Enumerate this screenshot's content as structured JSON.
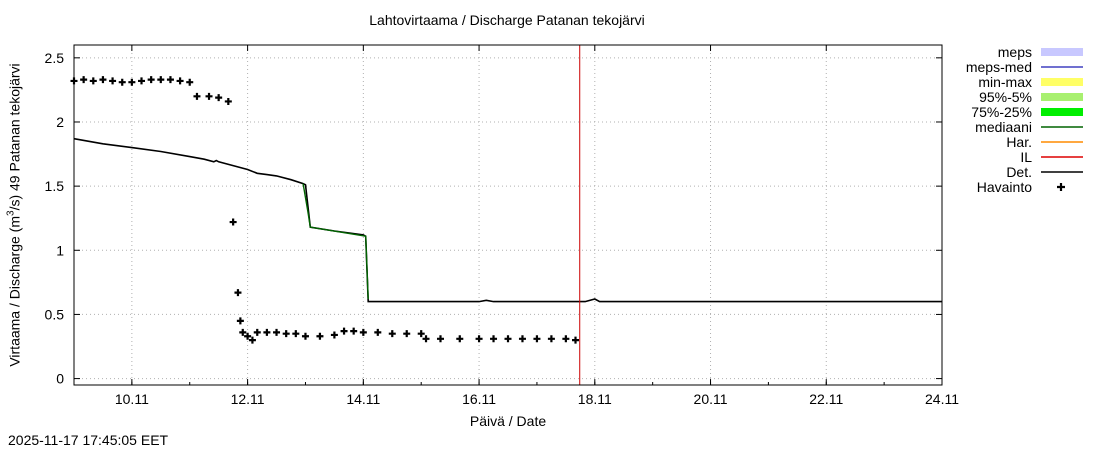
{
  "title": "Lahtovirtaama / Discharge  Patanan tekojärvi",
  "ylabel_main": "Virtaama / Discharge (m",
  "ylabel_sup": "3",
  "ylabel_tail": "/s)  49 Patanan tekojärvi",
  "xlabel": "Päivä / Date",
  "timestamp": "2025-11-17 17:45:05 EET",
  "chart_data": {
    "type": "line",
    "x_start": "2025-11-09",
    "x_ticks": [
      "10.11",
      "12.11",
      "14.11",
      "16.11",
      "18.11",
      "20.11",
      "22.11",
      "24.11"
    ],
    "xlim": [
      "2025-11-09",
      "2025-11-24"
    ],
    "ylim": [
      -0.05,
      2.6
    ],
    "y_ticks": [
      "0",
      "0.5",
      "1",
      "1.5",
      "2",
      "2.5"
    ],
    "y_tick_values": [
      0,
      0.5,
      1,
      1.5,
      2,
      2.5
    ],
    "grid": true,
    "vline": {
      "x": "2025-11-17 17:45",
      "color": "#cc0000"
    },
    "legend": [
      {
        "label": "meps",
        "style": "band",
        "color": "#c8c8ff"
      },
      {
        "label": "meps-med",
        "style": "line",
        "color": "#4040c0"
      },
      {
        "label": "min-max",
        "style": "band",
        "color": "#ffff66"
      },
      {
        "label": "95%-5%",
        "style": "band",
        "color": "#a8f070"
      },
      {
        "label": "75%-25%",
        "style": "band",
        "color": "#00ee00"
      },
      {
        "label": "mediaani",
        "style": "line",
        "color": "#006400"
      },
      {
        "label": "Har.",
        "style": "line",
        "color": "#ff8c00"
      },
      {
        "label": "IL",
        "style": "line",
        "color": "#dd0000"
      },
      {
        "label": "Det.",
        "style": "line",
        "color": "#000000"
      },
      {
        "label": "Havainto",
        "style": "point",
        "color": "#000000"
      }
    ],
    "series": [
      {
        "name": "Det.",
        "color": "#000000",
        "points": [
          [
            "2025-11-09 00:00",
            1.87
          ],
          [
            "2025-11-09 12:00",
            1.83
          ],
          [
            "2025-11-10 00:00",
            1.8
          ],
          [
            "2025-11-10 12:00",
            1.77
          ],
          [
            "2025-11-11 00:00",
            1.73
          ],
          [
            "2025-11-11 06:00",
            1.71
          ],
          [
            "2025-11-11 10:00",
            1.69
          ],
          [
            "2025-11-11 11:00",
            1.7
          ],
          [
            "2025-11-11 12:00",
            1.69
          ],
          [
            "2025-11-12 00:00",
            1.63
          ],
          [
            "2025-11-12 04:00",
            1.6
          ],
          [
            "2025-11-12 08:00",
            1.59
          ],
          [
            "2025-11-12 12:00",
            1.58
          ],
          [
            "2025-11-12 18:00",
            1.55
          ],
          [
            "2025-11-12 23:00",
            1.52
          ],
          [
            "2025-11-13 00:00",
            1.51
          ],
          [
            "2025-11-13 02:00",
            1.18
          ],
          [
            "2025-11-13 12:00",
            1.15
          ],
          [
            "2025-11-14 00:00",
            1.12
          ],
          [
            "2025-11-14 01:00",
            1.11
          ],
          [
            "2025-11-14 02:00",
            0.6
          ],
          [
            "2025-11-16 00:00",
            0.6
          ],
          [
            "2025-11-16 03:00",
            0.61
          ],
          [
            "2025-11-16 06:00",
            0.6
          ],
          [
            "2025-11-17 00:00",
            0.6
          ],
          [
            "2025-11-17 12:00",
            0.6
          ],
          [
            "2025-11-17 20:00",
            0.6
          ],
          [
            "2025-11-18 00:00",
            0.62
          ],
          [
            "2025-11-18 02:00",
            0.6
          ],
          [
            "2025-11-24 00:00",
            0.6
          ]
        ]
      },
      {
        "name": "mediaani",
        "color": "#006400",
        "points": [
          [
            "2025-11-12 23:00",
            1.52
          ],
          [
            "2025-11-13 01:00",
            1.3
          ],
          [
            "2025-11-13 02:00",
            1.18
          ],
          [
            "2025-11-14 01:00",
            1.11
          ],
          [
            "2025-11-14 02:00",
            0.62
          ]
        ]
      },
      {
        "name": "Havainto",
        "style": "points",
        "points": [
          [
            "2025-11-09 00:00",
            2.32
          ],
          [
            "2025-11-09 04:00",
            2.33
          ],
          [
            "2025-11-09 08:00",
            2.32
          ],
          [
            "2025-11-09 12:00",
            2.33
          ],
          [
            "2025-11-09 16:00",
            2.32
          ],
          [
            "2025-11-09 20:00",
            2.31
          ],
          [
            "2025-11-10 00:00",
            2.31
          ],
          [
            "2025-11-10 04:00",
            2.32
          ],
          [
            "2025-11-10 08:00",
            2.33
          ],
          [
            "2025-11-10 12:00",
            2.33
          ],
          [
            "2025-11-10 16:00",
            2.33
          ],
          [
            "2025-11-10 20:00",
            2.32
          ],
          [
            "2025-11-11 00:00",
            2.31
          ],
          [
            "2025-11-11 03:00",
            2.2
          ],
          [
            "2025-11-11 08:00",
            2.2
          ],
          [
            "2025-11-11 12:00",
            2.19
          ],
          [
            "2025-11-11 16:00",
            2.16
          ],
          [
            "2025-11-11 18:00",
            1.22
          ],
          [
            "2025-11-11 20:00",
            0.67
          ],
          [
            "2025-11-11 21:00",
            0.45
          ],
          [
            "2025-11-11 22:00",
            0.36
          ],
          [
            "2025-11-12 00:00",
            0.33
          ],
          [
            "2025-11-12 02:00",
            0.3
          ],
          [
            "2025-11-12 04:00",
            0.36
          ],
          [
            "2025-11-12 08:00",
            0.36
          ],
          [
            "2025-11-12 12:00",
            0.36
          ],
          [
            "2025-11-12 16:00",
            0.35
          ],
          [
            "2025-11-12 20:00",
            0.35
          ],
          [
            "2025-11-13 00:00",
            0.33
          ],
          [
            "2025-11-13 06:00",
            0.33
          ],
          [
            "2025-11-13 12:00",
            0.34
          ],
          [
            "2025-11-13 16:00",
            0.37
          ],
          [
            "2025-11-13 20:00",
            0.37
          ],
          [
            "2025-11-14 00:00",
            0.36
          ],
          [
            "2025-11-14 06:00",
            0.36
          ],
          [
            "2025-11-14 12:00",
            0.35
          ],
          [
            "2025-11-14 18:00",
            0.35
          ],
          [
            "2025-11-15 00:00",
            0.35
          ],
          [
            "2025-11-15 02:00",
            0.31
          ],
          [
            "2025-11-15 08:00",
            0.31
          ],
          [
            "2025-11-15 16:00",
            0.31
          ],
          [
            "2025-11-16 00:00",
            0.31
          ],
          [
            "2025-11-16 06:00",
            0.31
          ],
          [
            "2025-11-16 12:00",
            0.31
          ],
          [
            "2025-11-16 18:00",
            0.31
          ],
          [
            "2025-11-17 00:00",
            0.31
          ],
          [
            "2025-11-17 06:00",
            0.31
          ],
          [
            "2025-11-17 12:00",
            0.31
          ],
          [
            "2025-11-17 16:00",
            0.3
          ]
        ]
      }
    ]
  }
}
